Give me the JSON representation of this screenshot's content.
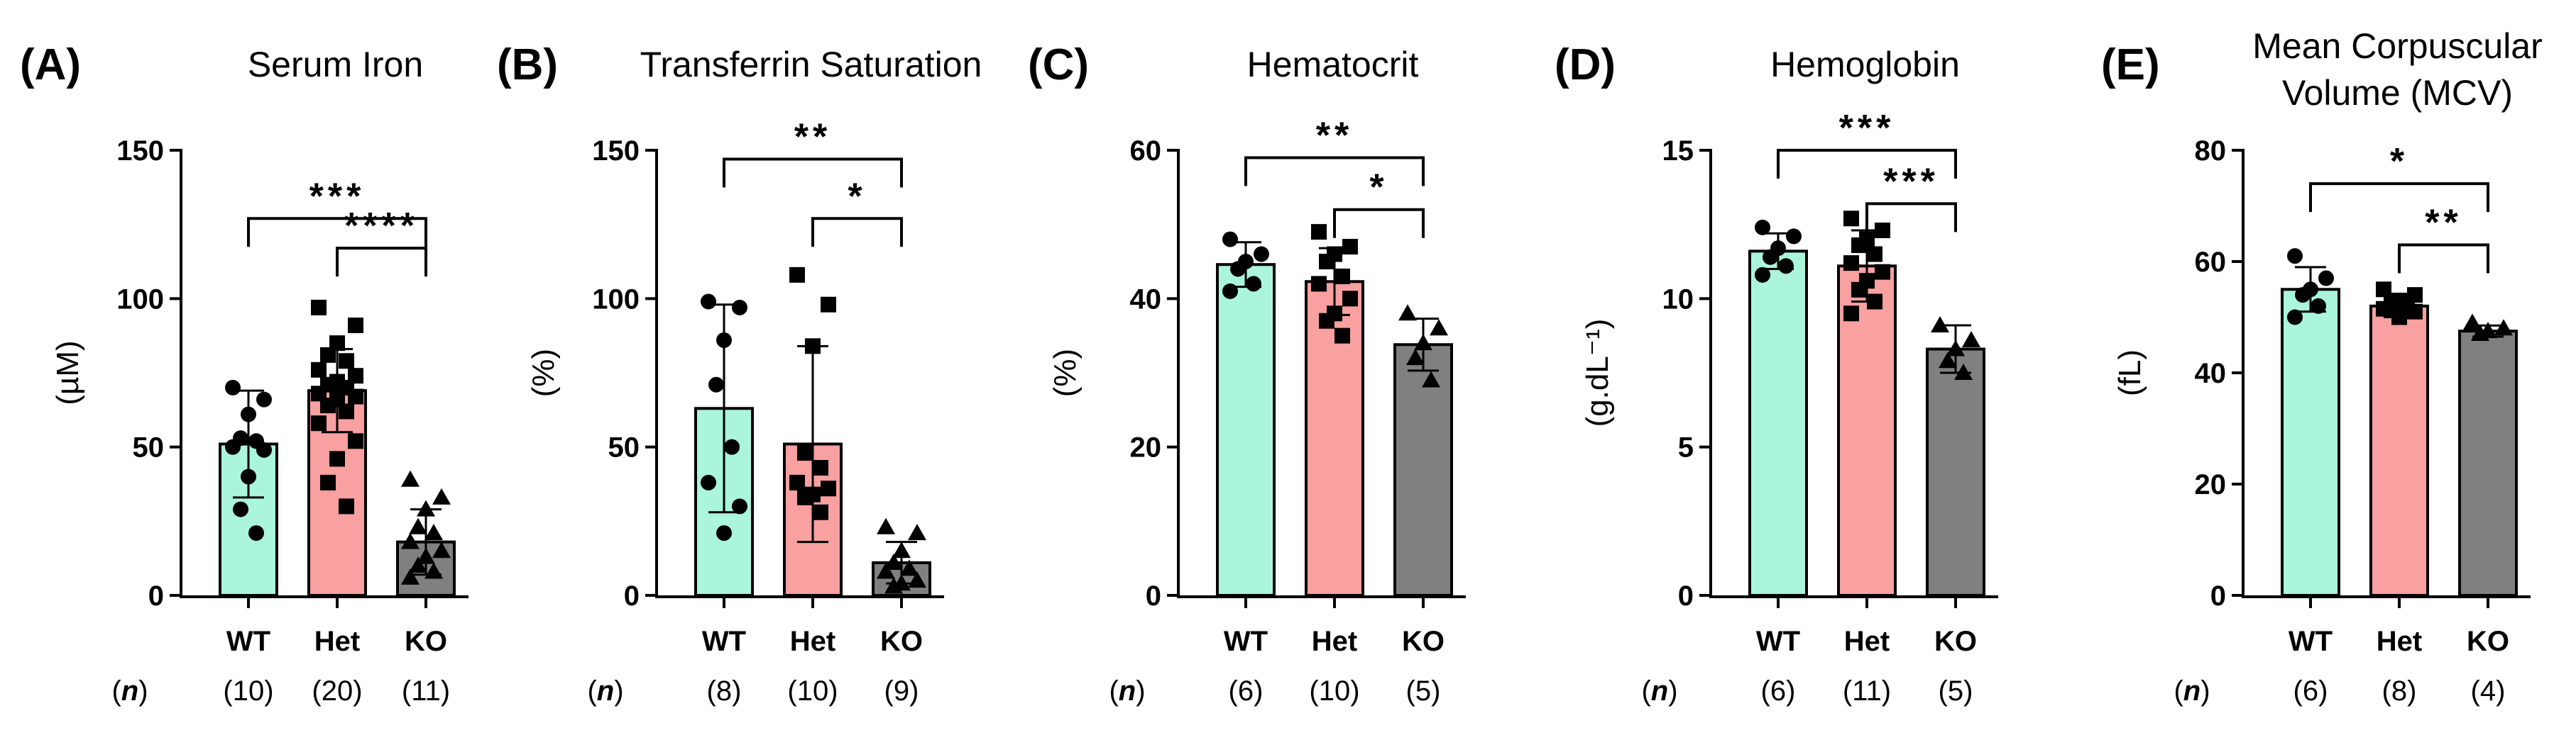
{
  "colors": {
    "WT": "#aaf5dc",
    "Het": "#f9a0a0",
    "KO": "#808080",
    "axis": "#000000"
  },
  "n_label": "n",
  "chart_data": [
    {
      "type": "bar",
      "panel": "(A)",
      "title_lines": [
        "Serum  Iron"
      ],
      "ylabel": "(µM)",
      "ylim": [
        0,
        150
      ],
      "yticks": [
        0,
        50,
        100,
        150
      ],
      "categories": [
        "WT",
        "Het",
        "KO"
      ],
      "n": [
        "(10)",
        "(20)",
        "(11)"
      ],
      "means": [
        51,
        69,
        18
      ],
      "sd": [
        18,
        14,
        11
      ],
      "points": [
        [
          70,
          66,
          61,
          53,
          52,
          50,
          49,
          40,
          29,
          21
        ],
        [
          97,
          91,
          85,
          81,
          79,
          76,
          74,
          72,
          71,
          70,
          68,
          67,
          66,
          64,
          62,
          58,
          52,
          46,
          38,
          30
        ],
        [
          39,
          33,
          29,
          23,
          21,
          18,
          15,
          13,
          10,
          8,
          6
        ]
      ],
      "markers": [
        "circle",
        "square",
        "triangle"
      ],
      "significance": [
        {
          "from": 0,
          "to": 2,
          "label": "***",
          "y": 127
        },
        {
          "from": 1,
          "to": 2,
          "label": "****",
          "y": 117
        }
      ]
    },
    {
      "type": "bar",
      "panel": "(B)",
      "title_lines": [
        "Transferrin Saturation"
      ],
      "ylabel": "(%)",
      "ylim": [
        0,
        150
      ],
      "yticks": [
        0,
        50,
        100,
        150
      ],
      "categories": [
        "WT",
        "Het",
        "KO"
      ],
      "n": [
        "(8)",
        "(10)",
        "(9)"
      ],
      "means": [
        63,
        51,
        11
      ],
      "sd": [
        35,
        33,
        7
      ],
      "points": [
        [
          99,
          97,
          86,
          71,
          50,
          38,
          30,
          21
        ],
        [
          108,
          98,
          84,
          48,
          43,
          38,
          36,
          34,
          33,
          28
        ],
        [
          23,
          21,
          15,
          11,
          9,
          8,
          5,
          4,
          3
        ]
      ],
      "markers": [
        "circle",
        "square",
        "triangle"
      ],
      "significance": [
        {
          "from": 0,
          "to": 2,
          "label": "**",
          "y": 147
        },
        {
          "from": 1,
          "to": 2,
          "label": "*",
          "y": 127
        }
      ]
    },
    {
      "type": "bar",
      "panel": "(C)",
      "title_lines": [
        "Hematocrit"
      ],
      "ylabel": "(%)",
      "ylim": [
        0,
        60
      ],
      "yticks": [
        0,
        20,
        40,
        60
      ],
      "categories": [
        "WT",
        "Het",
        "KO"
      ],
      "n": [
        "(6)",
        "(10)",
        "(5)"
      ],
      "means": [
        44.6,
        42.3,
        33.8
      ],
      "sd": [
        3,
        4.5,
        3.5
      ],
      "points": [
        [
          48,
          46,
          45,
          44,
          42,
          41
        ],
        [
          49,
          47,
          46,
          45,
          43,
          42,
          40,
          38,
          37,
          35
        ],
        [
          38,
          36,
          34,
          32,
          29
        ]
      ],
      "markers": [
        "circle",
        "square",
        "triangle"
      ],
      "significance": [
        {
          "from": 0,
          "to": 2,
          "label": "**",
          "y": 59
        },
        {
          "from": 1,
          "to": 2,
          "label": "*",
          "y": 52
        }
      ]
    },
    {
      "type": "bar",
      "panel": "(D)",
      "title_lines": [
        "Hemoglobin"
      ],
      "ylabel": "(g.dL⁻¹)",
      "ylim": [
        0,
        15
      ],
      "yticks": [
        0,
        5,
        10,
        15
      ],
      "categories": [
        "WT",
        "Het",
        "KO"
      ],
      "n": [
        "(6)",
        "(11)",
        "(5)"
      ],
      "means": [
        11.6,
        11.1,
        8.3
      ],
      "sd": [
        0.6,
        1.2,
        0.8
      ],
      "points": [
        [
          12.4,
          12.1,
          11.7,
          11.4,
          11.1,
          10.8
        ],
        [
          12.7,
          12.3,
          12.0,
          11.8,
          11.5,
          11.2,
          10.9,
          10.6,
          10.3,
          9.9,
          9.5
        ],
        [
          9.1,
          8.6,
          8.3,
          7.9,
          7.5
        ]
      ],
      "markers": [
        "circle",
        "square",
        "triangle"
      ],
      "significance": [
        {
          "from": 0,
          "to": 2,
          "label": "***",
          "y": 15
        },
        {
          "from": 1,
          "to": 2,
          "label": "***",
          "y": 13.2
        }
      ]
    },
    {
      "type": "bar",
      "panel": "(E)",
      "title_lines": [
        "Mean Corpuscular",
        "Volume (MCV)"
      ],
      "ylabel": "(fL)",
      "ylim": [
        0,
        80
      ],
      "yticks": [
        0,
        20,
        40,
        60,
        80
      ],
      "categories": [
        "WT",
        "Het",
        "KO"
      ],
      "n": [
        "(6)",
        "(8)",
        "(4)"
      ],
      "means": [
        55,
        52,
        47.5
      ],
      "sd": [
        4,
        2,
        1
      ],
      "points": [
        [
          61,
          57,
          55,
          54,
          52,
          50
        ],
        [
          55,
          54,
          53,
          52.5,
          52,
          51.5,
          51,
          50
        ],
        [
          49,
          48,
          47.5,
          47
        ]
      ],
      "markers": [
        "circle",
        "square",
        "triangle"
      ],
      "significance": [
        {
          "from": 0,
          "to": 2,
          "label": "*",
          "y": 74
        },
        {
          "from": 1,
          "to": 2,
          "label": "**",
          "y": 63
        }
      ]
    }
  ]
}
